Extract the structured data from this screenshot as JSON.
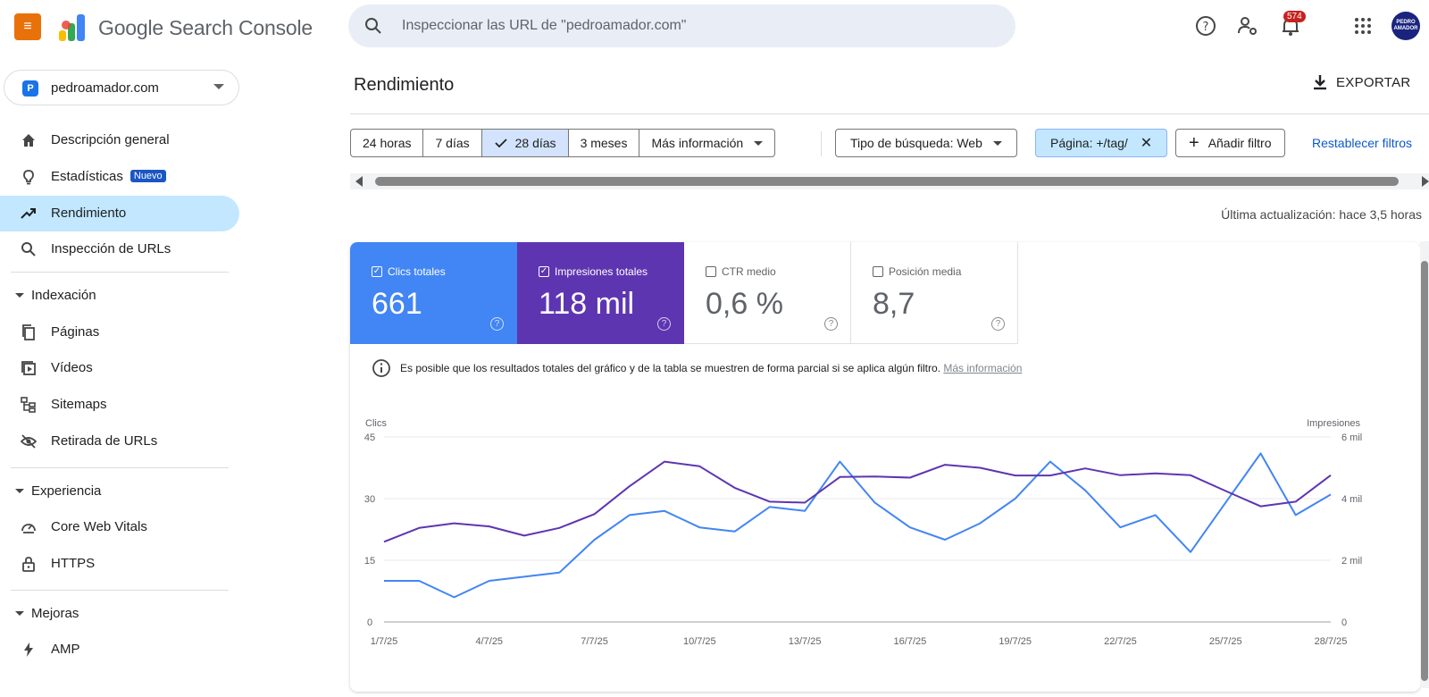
{
  "header": {
    "brand": "Google Search Console",
    "search_placeholder": "Inspeccionar las URL de \"pedroamador.com\"",
    "notifications_count": "574",
    "avatar_text": "PEDRO AMADOR"
  },
  "sidebar": {
    "property": "pedroamador.com",
    "property_initial": "P",
    "items": [
      {
        "label": "Descripción general",
        "icon": "home-icon"
      },
      {
        "label": "Estadísticas",
        "badge": "Nuevo",
        "icon": "lightbulb-icon"
      },
      {
        "label": "Rendimiento",
        "icon": "trending-up-icon",
        "active": true
      },
      {
        "label": "Inspección de URLs",
        "icon": "search-icon"
      }
    ],
    "sections": [
      {
        "label": "Indexación",
        "items": [
          {
            "label": "Páginas",
            "icon": "pages-icon"
          },
          {
            "label": "Vídeos",
            "icon": "video-icon"
          },
          {
            "label": "Sitemaps",
            "icon": "sitemap-icon"
          },
          {
            "label": "Retirada de URLs",
            "icon": "eye-off-icon"
          }
        ]
      },
      {
        "label": "Experiencia",
        "items": [
          {
            "label": "Core Web Vitals",
            "icon": "gauge-icon"
          },
          {
            "label": "HTTPS",
            "icon": "lock-icon"
          }
        ]
      },
      {
        "label": "Mejoras",
        "items": [
          {
            "label": "AMP",
            "icon": "bolt-icon"
          }
        ]
      }
    ]
  },
  "main": {
    "title": "Rendimiento",
    "export_label": "EXPORTAR",
    "date_chips": [
      "24 horas",
      "7 días",
      "28 días",
      "3 meses",
      "Más información"
    ],
    "selected_chip": "28 días",
    "search_type_filter": "Tipo de búsqueda: Web",
    "page_filter": "Página: +/tag/",
    "add_filter": "Añadir filtro",
    "reset_filters": "Restablecer filtros",
    "last_update": "Última actualización: hace 3,5 horas",
    "metrics": [
      {
        "label": "Clics totales",
        "value": "661",
        "checked": true,
        "color": "#4285f4"
      },
      {
        "label": "Impresiones totales",
        "value": "118 mil",
        "checked": true,
        "color": "#5e35b1"
      },
      {
        "label": "CTR medio",
        "value": "0,6 %",
        "checked": false
      },
      {
        "label": "Posición media",
        "value": "8,7",
        "checked": false
      }
    ],
    "notice": "Es posible que los resultados totales del gráfico y de la tabla se muestren de forma parcial si se aplica algún filtro.",
    "notice_link": "Más información"
  },
  "chart_data": {
    "type": "line",
    "x": [
      "1/7/25",
      "2/7/25",
      "3/7/25",
      "4/7/25",
      "5/7/25",
      "6/7/25",
      "7/7/25",
      "8/7/25",
      "9/7/25",
      "10/7/25",
      "11/7/25",
      "12/7/25",
      "13/7/25",
      "14/7/25",
      "15/7/25",
      "16/7/25",
      "17/7/25",
      "18/7/25",
      "19/7/25",
      "20/7/25",
      "21/7/25",
      "22/7/25",
      "23/7/25",
      "24/7/25",
      "25/7/25",
      "26/7/25",
      "27/7/25",
      "28/7/25"
    ],
    "x_ticks": [
      "1/7/25",
      "4/7/25",
      "7/7/25",
      "10/7/25",
      "13/7/25",
      "16/7/25",
      "19/7/25",
      "22/7/25",
      "25/7/25",
      "28/7/25"
    ],
    "series": [
      {
        "name": "Clics",
        "axis": "left",
        "color": "#4285f4",
        "values": [
          10,
          10,
          6,
          10,
          11,
          12,
          20,
          26,
          27,
          23,
          22,
          28,
          27,
          39,
          29,
          23,
          20,
          24,
          30,
          39,
          32,
          23,
          26,
          17,
          29,
          41,
          26,
          31
        ]
      },
      {
        "name": "Impresiones",
        "axis": "right",
        "color": "#5e35b1",
        "values": [
          2600,
          3050,
          3200,
          3100,
          2800,
          3050,
          3500,
          4400,
          5200,
          5050,
          4350,
          3900,
          3870,
          4700,
          4720,
          4680,
          5100,
          5000,
          4750,
          4750,
          4980,
          4760,
          4820,
          4760,
          4250,
          3750,
          3900,
          4760
        ]
      }
    ],
    "ylabel_left": "Clics",
    "ylabel_right": "Impresiones",
    "ylim_left": [
      0,
      45
    ],
    "yticks_left": [
      "0",
      "15",
      "30",
      "45"
    ],
    "ylim_right": [
      0,
      6000
    ],
    "yticks_right": [
      "0",
      "2 mil",
      "4 mil",
      "6 mil"
    ],
    "grid": true
  }
}
